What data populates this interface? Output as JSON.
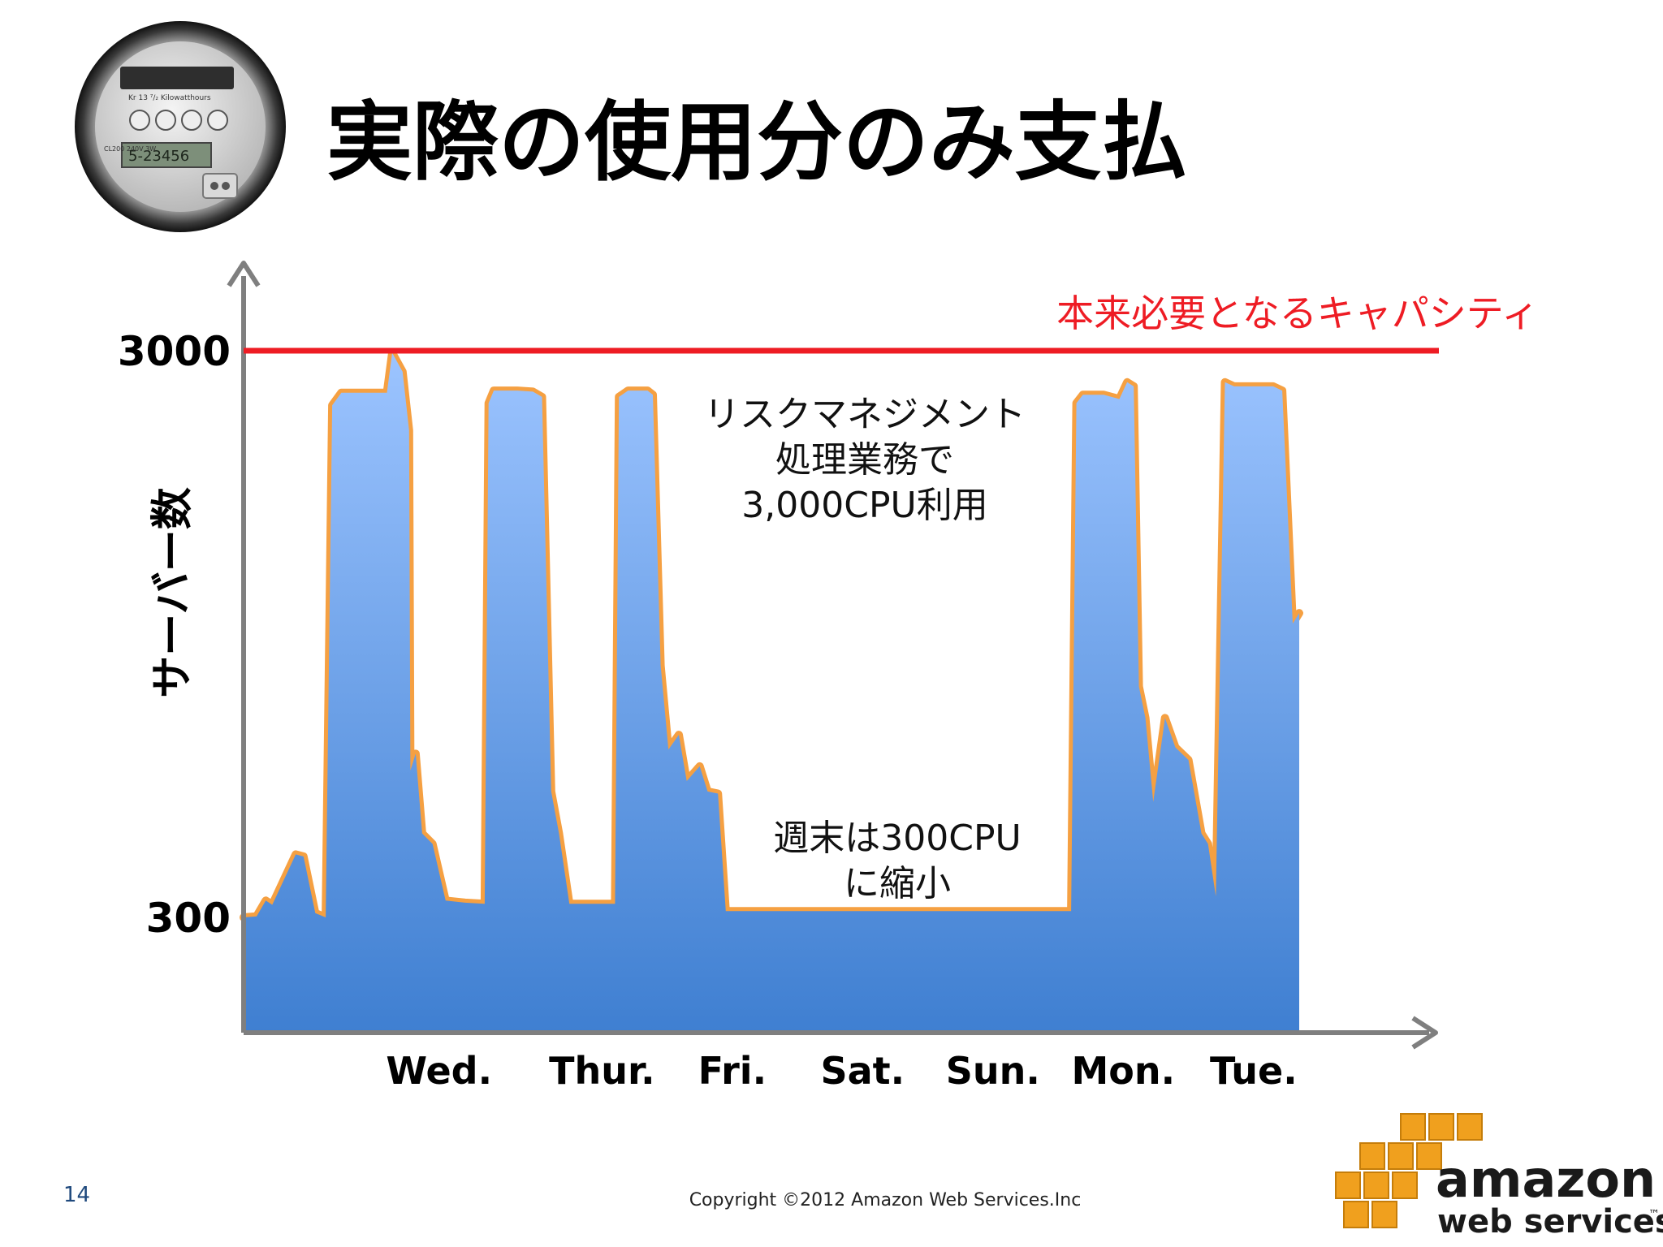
{
  "slide": {
    "title": "実際の使用分のみ支払",
    "page_number": "14",
    "copyright": "Copyright ©2012 Amazon Web Services.Inc"
  },
  "logo": {
    "line1": "amazon",
    "line2": "web services",
    "tm": "™",
    "color_cubes": "#f0a01e",
    "color_text": "#1a1a1a"
  },
  "meter": {
    "icon": "electric-meter-icon",
    "text_top": "Kr 13 ⁷/₂ Kilowatthours",
    "digital": "5-23456",
    "text_bottom": "CL200 240V 3W"
  },
  "chart_data": {
    "type": "area",
    "ylabel": "サーバー数",
    "y_ticks": [
      {
        "value": 3000,
        "label": "3000"
      },
      {
        "value": 300,
        "label": "300"
      }
    ],
    "ylim": [
      -500,
      3400
    ],
    "categories": [
      "Wed.",
      "Thur.",
      "Fri.",
      "Sat.",
      "Sun.",
      "Mon.",
      "Tue."
    ],
    "category_positions": [
      1.0,
      2.25,
      3.25,
      4.25,
      5.25,
      6.25,
      7.25
    ],
    "xlim": [
      -0.5,
      8.0
    ],
    "capacity_line": {
      "value": 3000,
      "label": "本来必要となるキャパシティ",
      "color": "#ee1c24"
    },
    "series": {
      "stroke_color": "#f5a042",
      "fill_top_color": "#9cc4ff",
      "fill_bottom_color": "#3f7fd1",
      "points": [
        [
          -0.5,
          300
        ],
        [
          -0.4,
          305
        ],
        [
          -0.33,
          380
        ],
        [
          -0.28,
          360
        ],
        [
          -0.1,
          600
        ],
        [
          -0.04,
          590
        ],
        [
          0.05,
          320
        ],
        [
          0.13,
          300
        ],
        [
          0.18,
          2740
        ],
        [
          0.25,
          2800
        ],
        [
          0.5,
          2800
        ],
        [
          0.6,
          2800
        ],
        [
          0.64,
          2990
        ],
        [
          0.72,
          2900
        ],
        [
          0.77,
          2620
        ],
        [
          0.78,
          1000
        ],
        [
          0.82,
          1080
        ],
        [
          0.87,
          700
        ],
        [
          0.95,
          650
        ],
        [
          1.05,
          380
        ],
        [
          1.2,
          370
        ],
        [
          1.35,
          365
        ],
        [
          1.38,
          2750
        ],
        [
          1.42,
          2810
        ],
        [
          1.6,
          2810
        ],
        [
          1.72,
          2805
        ],
        [
          1.79,
          2780
        ],
        [
          1.86,
          900
        ],
        [
          1.92,
          700
        ],
        [
          2.0,
          365
        ],
        [
          2.35,
          365
        ],
        [
          2.38,
          2780
        ],
        [
          2.45,
          2810
        ],
        [
          2.6,
          2810
        ],
        [
          2.64,
          2790
        ],
        [
          2.7,
          1500
        ],
        [
          2.76,
          1100
        ],
        [
          2.84,
          1170
        ],
        [
          2.9,
          950
        ],
        [
          3.0,
          1020
        ],
        [
          3.06,
          900
        ],
        [
          3.14,
          890
        ],
        [
          3.2,
          330
        ],
        [
          3.5,
          330
        ],
        [
          4.5,
          330
        ],
        [
          5.5,
          330
        ],
        [
          5.85,
          330
        ],
        [
          5.89,
          2750
        ],
        [
          5.94,
          2790
        ],
        [
          6.1,
          2790
        ],
        [
          6.22,
          2770
        ],
        [
          6.28,
          2850
        ],
        [
          6.33,
          2830
        ],
        [
          6.37,
          1400
        ],
        [
          6.42,
          1250
        ],
        [
          6.48,
          850
        ],
        [
          6.57,
          1250
        ],
        [
          6.65,
          1110
        ],
        [
          6.75,
          1050
        ],
        [
          6.85,
          700
        ],
        [
          6.9,
          650
        ],
        [
          6.96,
          400
        ],
        [
          7.03,
          2850
        ],
        [
          7.1,
          2830
        ],
        [
          7.4,
          2830
        ],
        [
          7.47,
          2810
        ],
        [
          7.55,
          1700
        ],
        [
          7.6,
          1750
        ]
      ]
    },
    "annotations": [
      {
        "lines": [
          "リスクマネジメント",
          "処理業務で",
          "3,000CPU利用"
        ],
        "x": 4.1,
        "y": 2830
      },
      {
        "lines": [
          "週末は300CPU",
          "に縮小"
        ],
        "x": 4.5,
        "y": 690
      }
    ]
  }
}
